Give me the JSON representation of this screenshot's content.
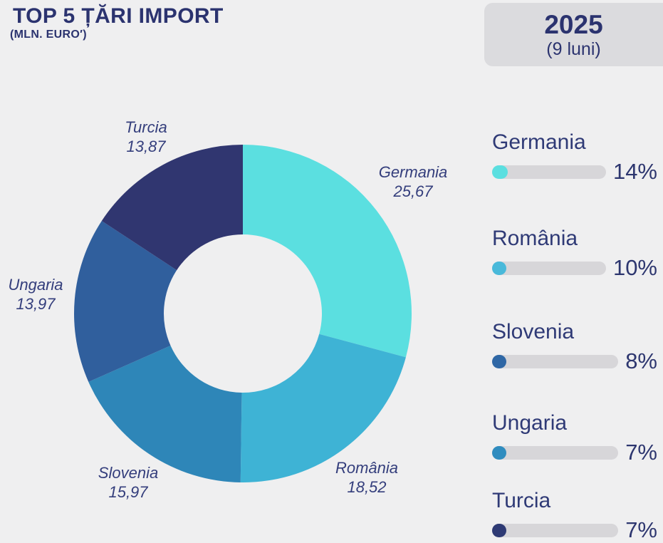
{
  "header": {
    "title": "TOP 5 ȚĂRI IMPORT",
    "subtitle": "(MLN. EURO′)",
    "year_box": {
      "year": "2025",
      "period": "(9 luni)"
    }
  },
  "donut": {
    "labels": [
      {
        "name": "Germania",
        "value": "25,67"
      },
      {
        "name": "România",
        "value": "18,52"
      },
      {
        "name": "Slovenia",
        "value": "15,97"
      },
      {
        "name": "Ungaria",
        "value": "13,97"
      },
      {
        "name": "Turcia",
        "value": "13,87"
      }
    ]
  },
  "legend": {
    "items": [
      {
        "label": "Germania",
        "percent": "14%",
        "fill_pct": 14,
        "color": "#5BDFE0"
      },
      {
        "label": "România",
        "percent": "10%",
        "fill_pct": 10,
        "color": "#49B9DA"
      },
      {
        "label": "Slovenia",
        "percent": "8%",
        "fill_pct": 8,
        "color": "#2F67A5"
      },
      {
        "label": "Ungaria",
        "percent": "7%",
        "fill_pct": 7,
        "color": "#2F8CBF"
      },
      {
        "label": "Turcia",
        "percent": "7%",
        "fill_pct": 7,
        "color": "#2E3A74"
      }
    ],
    "track_color": "#D7D6D9"
  },
  "chart_data": {
    "type": "pie",
    "title": "TOP 5 ȚĂRI IMPORT (MLN. EURO) — 2025 (9 luni)",
    "donut": true,
    "inner_radius_ratio": 0.468,
    "start_angle_deg": 0,
    "direction": "clockwise",
    "categories": [
      "Germania",
      "România",
      "Slovenia",
      "Ungaria",
      "Turcia"
    ],
    "values": [
      25.67,
      18.52,
      15.97,
      13.97,
      13.87
    ],
    "value_labels": [
      "25,67",
      "18,52",
      "15,97",
      "13,97",
      "13,87"
    ],
    "colors": [
      "#5BDFE0",
      "#3EB3D5",
      "#2E86B8",
      "#305F9D",
      "#303670"
    ],
    "legend_percentages": [
      14,
      10,
      8,
      7,
      7
    ],
    "legend_position": "right",
    "units": "MLN. EURO"
  }
}
